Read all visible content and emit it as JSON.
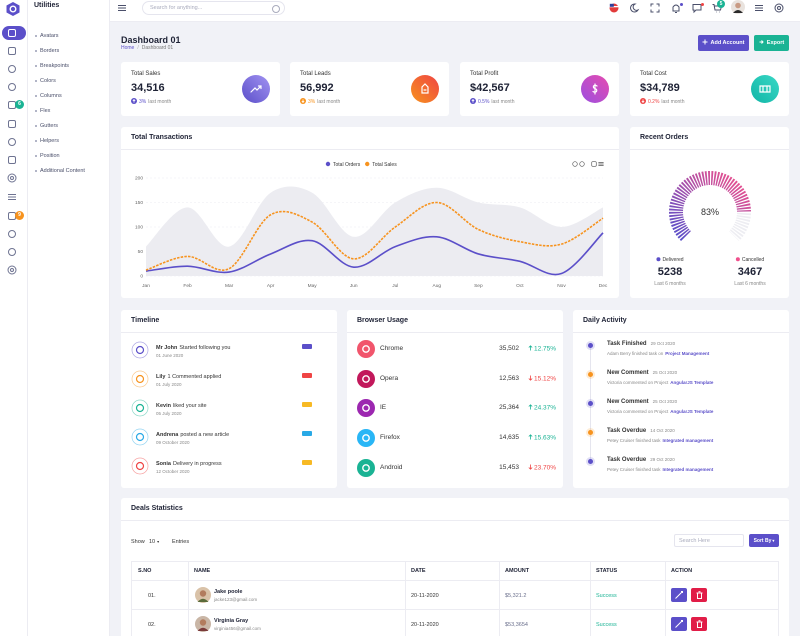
{
  "sidebar": {
    "title": "Utilities",
    "menu": [
      "Avatars",
      "Borders",
      "Breakpoints",
      "Colors",
      "Columns",
      "Flex",
      "Gutters",
      "Helpers",
      "Position",
      "Additional Content"
    ],
    "badges": [
      {
        "text": "6",
        "color": "#1ab394"
      },
      {
        "text": "9",
        "color": "#f7931e"
      }
    ]
  },
  "header": {
    "search_placeholder": "Search for anything...",
    "cart_badge": "5"
  },
  "page": {
    "title": "Dashboard 01",
    "breadcrumb": [
      "Home",
      "Dashboard 01"
    ],
    "buttons": [
      {
        "label": "Add Account",
        "color": "#5b4fc9"
      },
      {
        "label": "Export",
        "color": "#1ab394"
      }
    ]
  },
  "stats": [
    {
      "label": "Total Sales",
      "value": "34,516",
      "change": "3%",
      "period": "last month",
      "trend": "up",
      "color": "#5b4fc9",
      "gradient": [
        "#5b4fc9",
        "#a293f2"
      ]
    },
    {
      "label": "Total Leads",
      "value": "56,992",
      "change": "3%",
      "period": "last month",
      "trend": "down",
      "color": "#f7931e",
      "gradient": [
        "#f7931e",
        "#ef4444"
      ]
    },
    {
      "label": "Total Profit",
      "value": "$42,567",
      "change": "0.5%",
      "period": "last month",
      "trend": "up",
      "color": "#5b4fc9",
      "gradient": [
        "#9b4fe0",
        "#e64bb0"
      ]
    },
    {
      "label": "Total Cost",
      "value": "$34,789",
      "change": "0.2%",
      "period": "last month",
      "trend": "down",
      "color": "#ef4444",
      "gradient": [
        "#11b5a6",
        "#3ad8c6"
      ]
    }
  ],
  "chart_data": [
    {
      "type": "line",
      "title": "Total Transactions",
      "categories": [
        "Jan",
        "Feb",
        "Mar",
        "Apr",
        "May",
        "Jun",
        "Jul",
        "Aug",
        "Sep",
        "Oct",
        "Nov",
        "Dec"
      ],
      "series": [
        {
          "color": "#ececf1",
          "area": true,
          "values": [
            60,
            140,
            60,
            170,
            170,
            80,
            150,
            180,
            150,
            140,
            100,
            140
          ]
        },
        {
          "name": "Total Orders",
          "color": "#5b4fc9",
          "values": [
            10,
            20,
            8,
            45,
            72,
            18,
            60,
            80,
            45,
            30,
            5,
            88
          ]
        },
        {
          "name": "Total Sales",
          "color": "#f7931e",
          "dashed": true,
          "values": [
            12,
            40,
            15,
            125,
            110,
            35,
            100,
            150,
            95,
            70,
            65,
            118
          ]
        }
      ],
      "ylim": [
        0,
        200
      ],
      "yticks": [
        0,
        50,
        100,
        150,
        200
      ],
      "grid": true
    },
    {
      "type": "radialBar",
      "title": "Recent Orders",
      "values": [
        83
      ],
      "value_labels": [
        "83%"
      ],
      "ylim": [
        0,
        100
      ],
      "gradient": [
        "#5b4fc9",
        "#f0508c"
      ],
      "stats": [
        {
          "label": "Delivered",
          "value": "5238",
          "period": "Last 6 months",
          "color": "#5b4fc9"
        },
        {
          "label": "Cancelled",
          "value": "3467",
          "period": "Last 6 months",
          "color": "#f0508c"
        }
      ]
    }
  ],
  "timeline": {
    "title": "Timeline",
    "items": [
      {
        "name": "Mr John",
        "text": "Started following you",
        "date": "01 June 2020",
        "color": "#5b4fc9"
      },
      {
        "name": "Lily",
        "text": "1 Commented applied",
        "date": "01 July 2020",
        "color": "#f7931e"
      },
      {
        "name": "Kevin",
        "text": "liked your site",
        "date": "05 July 2020",
        "color": "#1ab394"
      },
      {
        "name": "Andrena",
        "text": "posted a new article",
        "date": "09 October 2020",
        "color": "#29a9e6"
      },
      {
        "name": "Sonia",
        "text": "Delivery in progress",
        "date": "12 October 2020",
        "color": "#ef4444"
      }
    ]
  },
  "browsers": {
    "title": "Browser Usage",
    "items": [
      {
        "name": "Chrome",
        "value": "35,502",
        "change": "12.75%",
        "trend": "up",
        "color": "#f1556c"
      },
      {
        "name": "Opera",
        "value": "12,563",
        "change": "15.12%",
        "trend": "down",
        "color": "#c2185b"
      },
      {
        "name": "IE",
        "value": "25,364",
        "change": "24.37%",
        "trend": "up",
        "color": "#9c27b0"
      },
      {
        "name": "Firefox",
        "value": "14,635",
        "change": "15.63%",
        "trend": "up",
        "color": "#29b6f6"
      },
      {
        "name": "Android",
        "value": "15,453",
        "change": "23.70%",
        "trend": "down",
        "color": "#1ab394"
      }
    ]
  },
  "activity": {
    "title": "Daily Activity",
    "items": [
      {
        "title": "Task Finished",
        "date": "29 Oct 2020",
        "text": "Adam Berry finished task on",
        "link": "Project Management",
        "color": "#5b4fc9"
      },
      {
        "title": "New Comment",
        "date": "25 Oct 2020",
        "text": "Victoria commented on Project",
        "link": "AngularJS Template",
        "color": "#f7931e"
      },
      {
        "title": "New Comment",
        "date": "25 Oct 2020",
        "text": "Victoria commented on Project",
        "link": "AngularJS Template",
        "color": "#5b4fc9"
      },
      {
        "title": "Task Overdue",
        "date": "14 Oct 2020",
        "text": "Petey Cruiser finished task",
        "link": "Integrated management",
        "color": "#f7931e"
      },
      {
        "title": "Task Overdue",
        "date": "29 Oct 2020",
        "text": "Petey Cruiser finished task",
        "link": "Integrated management",
        "color": "#5b4fc9"
      }
    ]
  },
  "deals": {
    "title": "Deals Statistics",
    "show": "Show",
    "page_size": "10",
    "entries": "Entries",
    "search_placeholder": "Search Here",
    "sort": "Sort By",
    "columns": [
      "S.NO",
      "NAME",
      "DATE",
      "AMOUNT",
      "STATUS",
      "ACTION"
    ],
    "rows": [
      {
        "sno": "01.",
        "name": "Jake poole",
        "email": "jacke123@gmail.com",
        "date": "20-11-2020",
        "amount": "$5,321.2",
        "status": "Success"
      },
      {
        "sno": "02.",
        "name": "Virginia Gray",
        "email": "virginia456@gmail.com",
        "date": "20-11-2020",
        "amount": "$53,3654",
        "status": "Success"
      }
    ]
  }
}
